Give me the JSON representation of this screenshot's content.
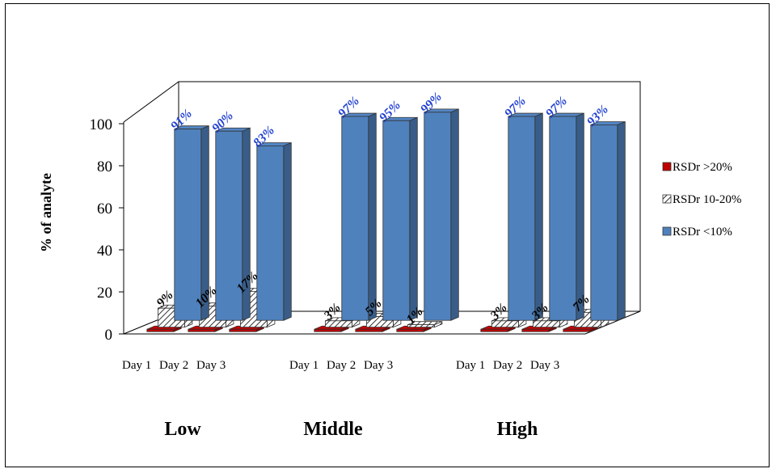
{
  "chart_data": {
    "type": "bar",
    "title": "",
    "ylabel": "% of analyte",
    "xlabel": "",
    "ylim": [
      0,
      100
    ],
    "yticks": [
      0,
      20,
      40,
      60,
      80,
      100
    ],
    "legend_position": "right",
    "groups": [
      "Low",
      "Middle",
      "High"
    ],
    "categories": [
      "Day 1",
      "Day 2",
      "Day 3"
    ],
    "series": [
      {
        "name": "RSDr >20%",
        "color": "#c00000",
        "values": [
          [
            0,
            0,
            0
          ],
          [
            0,
            0,
            0
          ],
          [
            0,
            0,
            0
          ]
        ],
        "labels": [
          [
            "",
            "",
            ""
          ],
          [
            "",
            "",
            ""
          ],
          [
            "",
            "",
            ""
          ]
        ]
      },
      {
        "name": "RSDr 10-20%",
        "color": "#ffffff",
        "pattern": "hatched",
        "values": [
          [
            9,
            10,
            17
          ],
          [
            3,
            5,
            1
          ],
          [
            3,
            3,
            7
          ]
        ],
        "labels": [
          [
            "9%",
            "10%",
            "17%"
          ],
          [
            "3%",
            "5%",
            "1%"
          ],
          [
            "3%",
            "3%",
            "7%"
          ]
        ]
      },
      {
        "name": "RSDr <10%",
        "color": "#4f81bd",
        "values": [
          [
            91,
            90,
            83
          ],
          [
            97,
            95,
            99
          ],
          [
            97,
            97,
            93
          ]
        ],
        "labels": [
          [
            "91%",
            "90%",
            "83%"
          ],
          [
            "97%",
            "95%",
            "99%"
          ],
          [
            "97%",
            "97%",
            "93%"
          ]
        ]
      }
    ]
  }
}
